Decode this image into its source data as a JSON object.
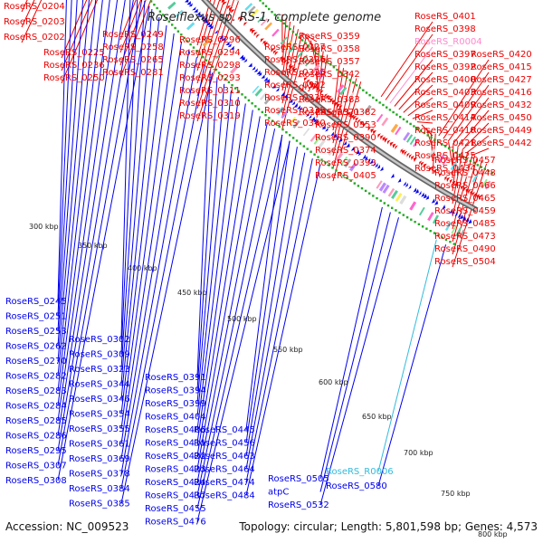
{
  "title": "Roseiflexus sp. RS-1, complete genome",
  "footer": {
    "accession": "Accession: NC_009523",
    "topology": "Topology: circular; Length: 5,801,598 bp; Genes: 4,573"
  },
  "colors": {
    "forward": "#ee0000",
    "reverse": "#0000ee",
    "rna": "#ff88cc",
    "rna_lower": "#33bbdd",
    "dots": "#22aa22",
    "backbone": "#999999"
  },
  "ticks": [
    "300 kbp",
    "350 kbp",
    "400 kbp",
    "450 kbp",
    "500 kbp",
    "550 kbp",
    "600 kbp",
    "650 kbp",
    "700 kbp",
    "750 kbp",
    "800 kbp"
  ],
  "labels_top": [
    "RoseRS_0204",
    "RoseRS_0203",
    "RoseRS_0202",
    "RoseRS_0225",
    "RoseRS_0236",
    "RoseRS_0250",
    "RoseRS_0249",
    "RoseRS_0258",
    "RoseRS_0265",
    "RoseRS_0281",
    "RoseRS_0296",
    "RoseRS_0294",
    "RoseRS_0298",
    "RoseRS_0293",
    "RoseRS_0311",
    "RoseRS_0310",
    "RoseRS_0319",
    "RoseRS_0327",
    "RoseRS_0326",
    "RoseRS_0325",
    "RoseRS_0332",
    "RoseRS_0331",
    "RoseRS_0335",
    "RoseRS_0340",
    "RoseRS_0359",
    "RoseRS_0358",
    "RoseRS_0357",
    "RoseRS_0342",
    "glyA",
    "RoseRS_0383",
    "RoseRS_0371",
    "RoseRS_0382",
    "RoseRS_0353",
    "RoseRS_0390",
    "RoseRS_0374",
    "RoseRS_0393",
    "RoseRS_0405",
    "RoseRS_0401",
    "RoseRS_0398",
    "RoseRS_R0004",
    "RoseRS_0397",
    "RoseRS_0392",
    "RoseRS_0400",
    "RoseRS_0403",
    "RoseRS_0409",
    "RoseRS_0414",
    "RoseRS_0410",
    "RoseRS_0421",
    "RoseRS_0425",
    "RoseRS_0434",
    "RoseRS_0420",
    "RoseRS_0415",
    "RoseRS_0427",
    "RoseRS_0416",
    "RoseRS_0432",
    "RoseRS_0450",
    "RoseRS_0449",
    "RoseRS_0442",
    "RoseRS_0457",
    "RoseRS_0448",
    "RoseRS_0466",
    "RoseRS_0465",
    "RoseRS_0459",
    "RoseRS_0485",
    "RoseRS_0473",
    "RoseRS_0490",
    "RoseRS_0504"
  ],
  "labels_bottom": [
    "RoseRS_0245",
    "RoseRS_0251",
    "RoseRS_0253",
    "RoseRS_0262",
    "RoseRS_0270",
    "RoseRS_0282",
    "RoseRS_0283",
    "RoseRS_0284",
    "RoseRS_0285",
    "RoseRS_0286",
    "RoseRS_0295",
    "RoseRS_0307",
    "RoseRS_0308",
    "RoseRS_0302",
    "RoseRS_0309",
    "RoseRS_0323",
    "RoseRS_0344",
    "RoseRS_0346",
    "RoseRS_0354",
    "RoseRS_0355",
    "RoseRS_0361",
    "RoseRS_0369",
    "RoseRS_0378",
    "RoseRS_0384",
    "RoseRS_0385",
    "RoseRS_0391",
    "RoseRS_0394",
    "RoseRS_0399",
    "RoseRS_0404",
    "RoseRS_0406",
    "RoseRS_0411",
    "RoseRS_0422",
    "RoseRS_0423",
    "RoseRS_0424",
    "RoseRS_0437",
    "RoseRS_0455",
    "RoseRS_0476",
    "RoseRS_0445",
    "RoseRS_0456",
    "RoseRS_0463",
    "RoseRS_0464",
    "RoseRS_0474",
    "RoseRS_0484",
    "RoseRS_0505",
    "atpC",
    "RoseRS_0532",
    "RoseRS_R0006",
    "RoseRS_0580"
  ]
}
